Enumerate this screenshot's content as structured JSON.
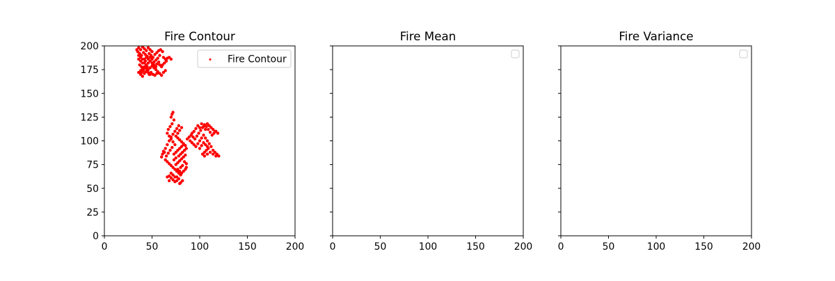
{
  "colors": {
    "marker": "#ff0000",
    "axis": "#000000",
    "legend_border": "#cccccc",
    "background": "#ffffff"
  },
  "chart_data": [
    {
      "type": "scatter",
      "title": "Fire Contour",
      "xlim": [
        0,
        200
      ],
      "ylim": [
        0,
        200
      ],
      "xticks": [
        0,
        50,
        100,
        150,
        200
      ],
      "yticks": [
        0,
        25,
        50,
        75,
        100,
        125,
        150,
        175,
        200
      ],
      "show_ytick_labels": true,
      "grid": false,
      "legend_position": "top-right",
      "legend": [
        "Fire Contour"
      ],
      "series": [
        {
          "name": "Fire Contour",
          "color": "#ff0000",
          "points": [
            [
              36,
              198
            ],
            [
              38,
              196
            ],
            [
              40,
              199
            ],
            [
              42,
              197
            ],
            [
              44,
              195
            ],
            [
              46,
              198
            ],
            [
              48,
              196
            ],
            [
              50,
              194
            ],
            [
              35,
              194
            ],
            [
              37,
              192
            ],
            [
              39,
              190
            ],
            [
              41,
              193
            ],
            [
              43,
              191
            ],
            [
              45,
              189
            ],
            [
              47,
              192
            ],
            [
              49,
              190
            ],
            [
              51,
              188
            ],
            [
              53,
              191
            ],
            [
              55,
              193
            ],
            [
              57,
              195
            ],
            [
              59,
              196
            ],
            [
              61,
              194
            ],
            [
              58,
              190
            ],
            [
              56,
              187
            ],
            [
              54,
              185
            ],
            [
              52,
              183
            ],
            [
              50,
              186
            ],
            [
              48,
              184
            ],
            [
              46,
              182
            ],
            [
              44,
              180
            ],
            [
              42,
              178
            ],
            [
              40,
              176
            ],
            [
              38,
              174
            ],
            [
              36,
              172
            ],
            [
              38,
              170
            ],
            [
              40,
              168
            ],
            [
              42,
              171
            ],
            [
              44,
              173
            ],
            [
              46,
              175
            ],
            [
              48,
              177
            ],
            [
              50,
              179
            ],
            [
              52,
              177
            ],
            [
              54,
              175
            ],
            [
              56,
              173
            ],
            [
              58,
              171
            ],
            [
              60,
              169
            ],
            [
              62,
              172
            ],
            [
              64,
              174
            ],
            [
              60,
              178
            ],
            [
              58,
              180
            ],
            [
              36,
              186
            ],
            [
              38,
              184
            ],
            [
              40,
              182
            ],
            [
              42,
              186
            ],
            [
              44,
              188
            ],
            [
              46,
              186
            ],
            [
              48,
              188
            ],
            [
              50,
              182
            ],
            [
              52,
              180
            ],
            [
              54,
              178
            ],
            [
              37,
              180
            ],
            [
              39,
              178
            ],
            [
              41,
              176
            ],
            [
              43,
              184
            ],
            [
              45,
              178
            ],
            [
              47,
              170
            ],
            [
              49,
              172
            ],
            [
              51,
              170
            ],
            [
              53,
              169
            ],
            [
              55,
              171
            ],
            [
              62,
              188
            ],
            [
              64,
              186
            ],
            [
              66,
              187
            ],
            [
              68,
              188
            ],
            [
              70,
              186
            ],
            [
              65,
              184
            ],
            [
              63,
              182
            ],
            [
              61,
              180
            ],
            [
              57,
              183
            ],
            [
              55,
              181
            ],
            [
              34,
              196
            ],
            [
              36,
              190
            ],
            [
              38,
              188
            ],
            [
              40,
              186
            ],
            [
              42,
              182
            ],
            [
              44,
              176
            ],
            [
              46,
              172
            ],
            [
              48,
              170
            ],
            [
              39,
              172
            ],
            [
              41,
              174
            ],
            [
              71,
              128
            ],
            [
              72,
              130
            ],
            [
              70,
              125
            ],
            [
              73,
              122
            ],
            [
              71,
              118
            ],
            [
              69,
              115
            ],
            [
              67,
              112
            ],
            [
              66,
              108
            ],
            [
              68,
              105
            ],
            [
              70,
              102
            ],
            [
              72,
              99
            ],
            [
              74,
              96
            ],
            [
              71,
              93
            ],
            [
              69,
              90
            ],
            [
              67,
              87
            ],
            [
              65,
              84
            ],
            [
              63,
              88
            ],
            [
              61,
              86
            ],
            [
              60,
              83
            ],
            [
              64,
              80
            ],
            [
              66,
              78
            ],
            [
              68,
              76
            ],
            [
              70,
              74
            ],
            [
              72,
              72
            ],
            [
              74,
              70
            ],
            [
              76,
              68
            ],
            [
              78,
              66
            ],
            [
              80,
              64
            ],
            [
              78,
              60
            ],
            [
              76,
              58
            ],
            [
              74,
              57
            ],
            [
              72,
              59
            ],
            [
              70,
              61
            ],
            [
              68,
              63
            ],
            [
              66,
              62
            ],
            [
              68,
              58
            ],
            [
              80,
              56
            ],
            [
              82,
              58
            ],
            [
              79,
              55
            ],
            [
              76,
              62
            ],
            [
              75,
              75
            ],
            [
              77,
              77
            ],
            [
              79,
              79
            ],
            [
              81,
              81
            ],
            [
              83,
              83
            ],
            [
              85,
              85
            ],
            [
              84,
              78
            ],
            [
              86,
              76
            ],
            [
              82,
              74
            ],
            [
              80,
              72
            ],
            [
              78,
              84
            ],
            [
              80,
              86
            ],
            [
              82,
              88
            ],
            [
              84,
              90
            ],
            [
              86,
              92
            ],
            [
              85,
              95
            ],
            [
              83,
              97
            ],
            [
              81,
              99
            ],
            [
              79,
              101
            ],
            [
              77,
              103
            ],
            [
              75,
              105
            ],
            [
              77,
              108
            ],
            [
              79,
              111
            ],
            [
              81,
              114
            ],
            [
              78,
              116
            ],
            [
              76,
              113
            ],
            [
              74,
              110
            ],
            [
              72,
              107
            ],
            [
              70,
              104
            ],
            [
              68,
              100
            ],
            [
              66,
              96
            ],
            [
              64,
              92
            ],
            [
              62,
              89
            ],
            [
              73,
              86
            ],
            [
              75,
              88
            ],
            [
              77,
              90
            ],
            [
              79,
              92
            ],
            [
              81,
              94
            ],
            [
              83,
              96
            ],
            [
              73,
              80
            ],
            [
              75,
              82
            ],
            [
              77,
              70
            ],
            [
              79,
              68
            ],
            [
              81,
              66
            ],
            [
              83,
              68
            ],
            [
              85,
              70
            ],
            [
              86,
              72
            ],
            [
              70,
              66
            ],
            [
              72,
              64
            ],
            [
              74,
              62
            ],
            [
              97,
              105
            ],
            [
              99,
              108
            ],
            [
              101,
              111
            ],
            [
              103,
              114
            ],
            [
              105,
              117
            ],
            [
              107,
              115
            ],
            [
              109,
              112
            ],
            [
              111,
              109
            ],
            [
              113,
              106
            ],
            [
              115,
              108
            ],
            [
              117,
              110
            ],
            [
              119,
              108
            ],
            [
              95,
              102
            ],
            [
              93,
              104
            ],
            [
              91,
              106
            ],
            [
              89,
              104
            ],
            [
              87,
              102
            ],
            [
              90,
              100
            ],
            [
              92,
              98
            ],
            [
              94,
              96
            ],
            [
              96,
              94
            ],
            [
              98,
              97
            ],
            [
              100,
              100
            ],
            [
              102,
              103
            ],
            [
              104,
              106
            ],
            [
              106,
              103
            ],
            [
              108,
              100
            ],
            [
              110,
              97
            ],
            [
              112,
              94
            ],
            [
              109,
              92
            ],
            [
              107,
              90
            ],
            [
              105,
              88
            ],
            [
              103,
              86
            ],
            [
              105,
              84
            ],
            [
              108,
              86
            ],
            [
              111,
              88
            ],
            [
              114,
              90
            ],
            [
              116,
              88
            ],
            [
              118,
              86
            ],
            [
              120,
              84
            ],
            [
              117,
              84
            ],
            [
              114,
              86
            ],
            [
              100,
              114
            ],
            [
              98,
              116
            ],
            [
              96,
              113
            ],
            [
              94,
              110
            ],
            [
              92,
              108
            ],
            [
              102,
              118
            ],
            [
              104,
              115
            ],
            [
              106,
              112
            ],
            [
              108,
              118
            ],
            [
              110,
              116
            ],
            [
              112,
              114
            ],
            [
              114,
              112
            ],
            [
              116,
              110
            ],
            [
              100,
              92
            ],
            [
              102,
              95
            ],
            [
              104,
              98
            ],
            [
              106,
              96
            ],
            [
              108,
              94
            ]
          ]
        }
      ]
    },
    {
      "type": "scatter",
      "title": "Fire Mean",
      "xlim": [
        0,
        200
      ],
      "ylim": [
        0,
        200
      ],
      "xticks": [
        0,
        50,
        100,
        150,
        200
      ],
      "yticks": [
        0,
        25,
        50,
        75,
        100,
        125,
        150,
        175,
        200
      ],
      "show_ytick_labels": false,
      "grid": false,
      "legend_position": "top-right",
      "legend": [],
      "series": []
    },
    {
      "type": "scatter",
      "title": "Fire Variance",
      "xlim": [
        0,
        200
      ],
      "ylim": [
        0,
        200
      ],
      "xticks": [
        0,
        50,
        100,
        150,
        200
      ],
      "yticks": [
        0,
        25,
        50,
        75,
        100,
        125,
        150,
        175,
        200
      ],
      "show_ytick_labels": false,
      "grid": false,
      "legend_position": "top-right",
      "legend": [],
      "series": []
    }
  ]
}
